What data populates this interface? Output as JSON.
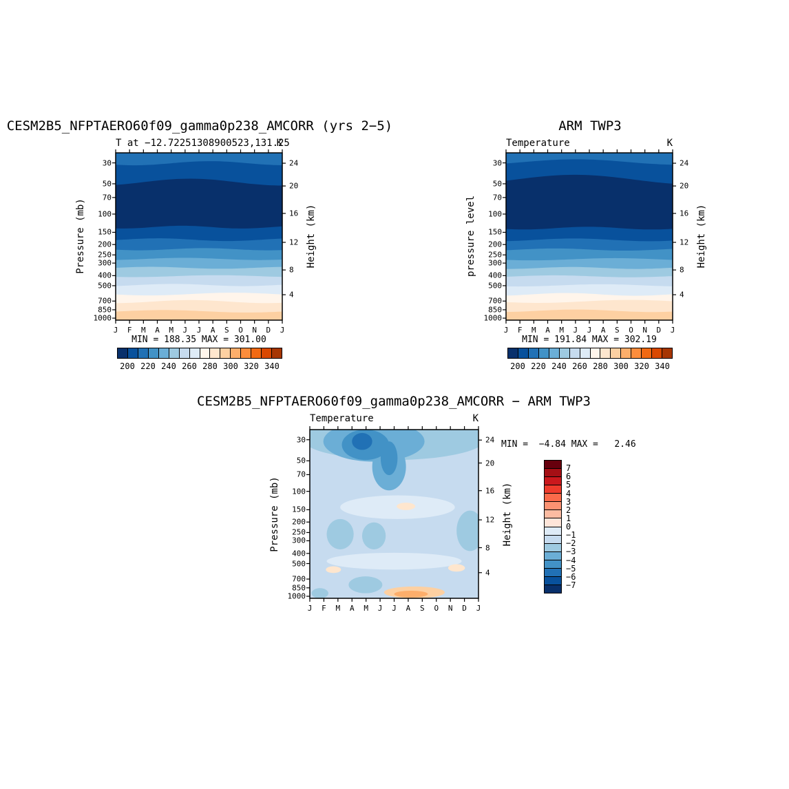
{
  "page": {
    "background": "#ffffff"
  },
  "chart_data": {
    "type": "contour",
    "x_axis": "month",
    "months": [
      "J",
      "F",
      "M",
      "A",
      "M",
      "J",
      "J",
      "A",
      "S",
      "O",
      "N",
      "D",
      "J"
    ],
    "pressure_ticks": [
      {
        "v": "30",
        "f": 0.06
      },
      {
        "v": "50",
        "f": 0.185
      },
      {
        "v": "70",
        "f": 0.267
      },
      {
        "v": "100",
        "f": 0.366
      },
      {
        "v": "150",
        "f": 0.475
      },
      {
        "v": "200",
        "f": 0.548
      },
      {
        "v": "250",
        "f": 0.61
      },
      {
        "v": "300",
        "f": 0.659
      },
      {
        "v": "400",
        "f": 0.734
      },
      {
        "v": "500",
        "f": 0.794
      },
      {
        "v": "700",
        "f": 0.886
      },
      {
        "v": "850",
        "f": 0.938
      },
      {
        "v": "1000",
        "f": 0.988
      }
    ],
    "height_ticks": [
      {
        "v": "24",
        "f": 0.062
      },
      {
        "v": "20",
        "f": 0.198
      },
      {
        "v": "16",
        "f": 0.362
      },
      {
        "v": "12",
        "f": 0.535
      },
      {
        "v": "8",
        "f": 0.7
      },
      {
        "v": "4",
        "f": 0.848
      }
    ],
    "temp_colorbar": {
      "levels": [
        190,
        200,
        210,
        220,
        230,
        240,
        250,
        260,
        270,
        280,
        290,
        300,
        310,
        320,
        330,
        340,
        350
      ],
      "labels": [
        "200",
        "220",
        "240",
        "260",
        "280",
        "300",
        "320",
        "340"
      ],
      "colors": [
        "#08306b",
        "#08519c",
        "#2171b5",
        "#4292c6",
        "#6baed6",
        "#9ecae1",
        "#c6dbef",
        "#deebf7",
        "#fff5eb",
        "#fee6ce",
        "#fdd0a2",
        "#fdae6b",
        "#fd8d3c",
        "#f16913",
        "#d94801",
        "#a63603"
      ]
    },
    "diff_colorbar": {
      "levels": [
        8,
        7,
        6,
        5,
        4,
        3,
        2,
        1,
        0,
        -1,
        -2,
        -3,
        -4,
        -5,
        -6,
        -7,
        -8
      ],
      "labels": [
        "7",
        "6",
        "5",
        "4",
        "3",
        "2",
        "1",
        "0",
        "−1",
        "−2",
        "−3",
        "−4",
        "−5",
        "−6",
        "−7"
      ],
      "colors": [
        "#67000d",
        "#a50f15",
        "#cb181d",
        "#ef3b2c",
        "#fb6a4a",
        "#fc9272",
        "#fcbba1",
        "#fee5d9",
        "#deebf7",
        "#c6dbef",
        "#9ecae1",
        "#6baed6",
        "#4292c6",
        "#2171b5",
        "#08519c",
        "#08306b"
      ]
    },
    "panels": [
      {
        "title": "CESM2B5_NFPTAERO60f09_gamma0p238_AMCORR (yrs 2−5)",
        "subtitle": "T at −12.72251308900523,131.25",
        "units": "K",
        "ylabel_left": "Pressure (mb)",
        "ylabel_right": "Height (km)",
        "stats": "MIN = 188.35 MAX = 301.00",
        "bands": [
          {
            "c": "#2171b5",
            "f": 0,
            "amp": 0
          },
          {
            "c": "#08519c",
            "f": 0.062,
            "amp": 3,
            "k": 1.1,
            "ph": 0.8
          },
          {
            "c": "#08306b",
            "f": 0.175,
            "amp": 5,
            "k": 0.9,
            "ph": 2.2
          },
          {
            "c": "#08519c",
            "f": 0.444,
            "amp": 2,
            "k": 1.4,
            "ph": 1.2
          },
          {
            "c": "#2171b5",
            "f": 0.519,
            "amp": 2,
            "k": 1.2,
            "ph": 2.8
          },
          {
            "c": "#4292c6",
            "f": 0.576,
            "amp": 1.6,
            "k": 1.3,
            "ph": 0.4
          },
          {
            "c": "#6baed6",
            "f": 0.634,
            "amp": 1.6,
            "k": 1.1,
            "ph": 1.9
          },
          {
            "c": "#9ecae1",
            "f": 0.687,
            "amp": 1.4,
            "k": 1.2,
            "ph": 3.1
          },
          {
            "c": "#c6dbef",
            "f": 0.737,
            "amp": 1.4,
            "k": 1,
            "ph": 0.9
          },
          {
            "c": "#deebf7",
            "f": 0.79,
            "amp": 1.6,
            "k": 1.2,
            "ph": 2.1
          },
          {
            "c": "#fff5eb",
            "f": 0.844,
            "amp": 2,
            "k": 1,
            "ph": 0.3
          },
          {
            "c": "#fee6ce",
            "f": 0.889,
            "amp": 2.2,
            "k": 1.1,
            "ph": 1.6
          },
          {
            "c": "#fdd0a2",
            "f": 0.947,
            "amp": 1.8,
            "k": 1,
            "ph": 2.9
          }
        ]
      },
      {
        "title": "ARM TWP3",
        "subtitle": "Temperature",
        "units": "K",
        "ylabel_left": "pressure level",
        "ylabel_right": "Height (km)",
        "stats": "MIN = 191.84 MAX = 302.19",
        "bands": [
          {
            "c": "#2171b5",
            "f": 0,
            "amp": 0
          },
          {
            "c": "#08519c",
            "f": 0.055,
            "amp": 4,
            "k": 0.8,
            "ph": 2.6
          },
          {
            "c": "#08306b",
            "f": 0.16,
            "amp": 7,
            "k": 0.7,
            "ph": 2.9
          },
          {
            "c": "#08519c",
            "f": 0.45,
            "amp": 2,
            "k": 1.3,
            "ph": 0.7
          },
          {
            "c": "#2171b5",
            "f": 0.52,
            "amp": 2,
            "k": 1.1,
            "ph": 1.9
          },
          {
            "c": "#4292c6",
            "f": 0.578,
            "amp": 1.6,
            "k": 1.2,
            "ph": 2.5
          },
          {
            "c": "#6baed6",
            "f": 0.636,
            "amp": 1.6,
            "k": 1,
            "ph": 0.6
          },
          {
            "c": "#9ecae1",
            "f": 0.688,
            "amp": 1.4,
            "k": 1.3,
            "ph": 1.5
          },
          {
            "c": "#c6dbef",
            "f": 0.738,
            "amp": 1.4,
            "k": 1.1,
            "ph": 2.7
          },
          {
            "c": "#deebf7",
            "f": 0.792,
            "amp": 1.6,
            "k": 1,
            "ph": 1.1
          },
          {
            "c": "#fff5eb",
            "f": 0.846,
            "amp": 2,
            "k": 1.2,
            "ph": 2
          },
          {
            "c": "#fee6ce",
            "f": 0.888,
            "amp": 2.2,
            "k": 0.9,
            "ph": 0.5
          },
          {
            "c": "#fdd0a2",
            "f": 0.944,
            "amp": 1.8,
            "k": 1.1,
            "ph": 1.8
          }
        ]
      },
      {
        "title": "CESM2B5_NFPTAERO60f09_gamma0p238_AMCORR − ARM TWP3",
        "subtitle": "Temperature",
        "units": "K",
        "ylabel_left": "Pressure (mb)",
        "ylabel_right": "Height (km)",
        "stats": "MIN =  −4.84 MAX =   2.46",
        "background": "#c6dbef",
        "blobs": [
          {
            "c": "#9ecae1",
            "x": 0.5,
            "y": 0.05,
            "rx": 0.55,
            "ry": 0.13
          },
          {
            "c": "#6baed6",
            "x": 0.38,
            "y": 0.07,
            "rx": 0.3,
            "ry": 0.12
          },
          {
            "c": "#6baed6",
            "x": 0.47,
            "y": 0.22,
            "rx": 0.1,
            "ry": 0.14
          },
          {
            "c": "#4292c6",
            "x": 0.33,
            "y": 0.09,
            "rx": 0.14,
            "ry": 0.09
          },
          {
            "c": "#4292c6",
            "x": 0.47,
            "y": 0.17,
            "rx": 0.05,
            "ry": 0.1
          },
          {
            "c": "#2171b5",
            "x": 0.31,
            "y": 0.07,
            "rx": 0.06,
            "ry": 0.05
          },
          {
            "c": "#deebf7",
            "x": 0.52,
            "y": 0.46,
            "rx": 0.34,
            "ry": 0.07
          },
          {
            "c": "#deebf7",
            "x": 0.5,
            "y": 0.78,
            "rx": 0.4,
            "ry": 0.05
          },
          {
            "c": "#9ecae1",
            "x": 0.18,
            "y": 0.62,
            "rx": 0.08,
            "ry": 0.09
          },
          {
            "c": "#9ecae1",
            "x": 0.38,
            "y": 0.63,
            "rx": 0.07,
            "ry": 0.08
          },
          {
            "c": "#9ecae1",
            "x": 0.95,
            "y": 0.6,
            "rx": 0.08,
            "ry": 0.12
          },
          {
            "c": "#9ecae1",
            "x": 0.33,
            "y": 0.92,
            "rx": 0.1,
            "ry": 0.05
          },
          {
            "c": "#9ecae1",
            "x": 0.06,
            "y": 0.97,
            "rx": 0.05,
            "ry": 0.03
          },
          {
            "c": "#fee6ce",
            "x": 0.57,
            "y": 0.455,
            "rx": 0.055,
            "ry": 0.022
          },
          {
            "c": "#fee6ce",
            "x": 0.14,
            "y": 0.83,
            "rx": 0.045,
            "ry": 0.02
          },
          {
            "c": "#fee6ce",
            "x": 0.87,
            "y": 0.82,
            "rx": 0.05,
            "ry": 0.022
          },
          {
            "c": "#fdd0a2",
            "x": 0.62,
            "y": 0.965,
            "rx": 0.18,
            "ry": 0.035
          },
          {
            "c": "#fdae6b",
            "x": 0.6,
            "y": 0.975,
            "rx": 0.1,
            "ry": 0.02
          }
        ]
      }
    ]
  }
}
